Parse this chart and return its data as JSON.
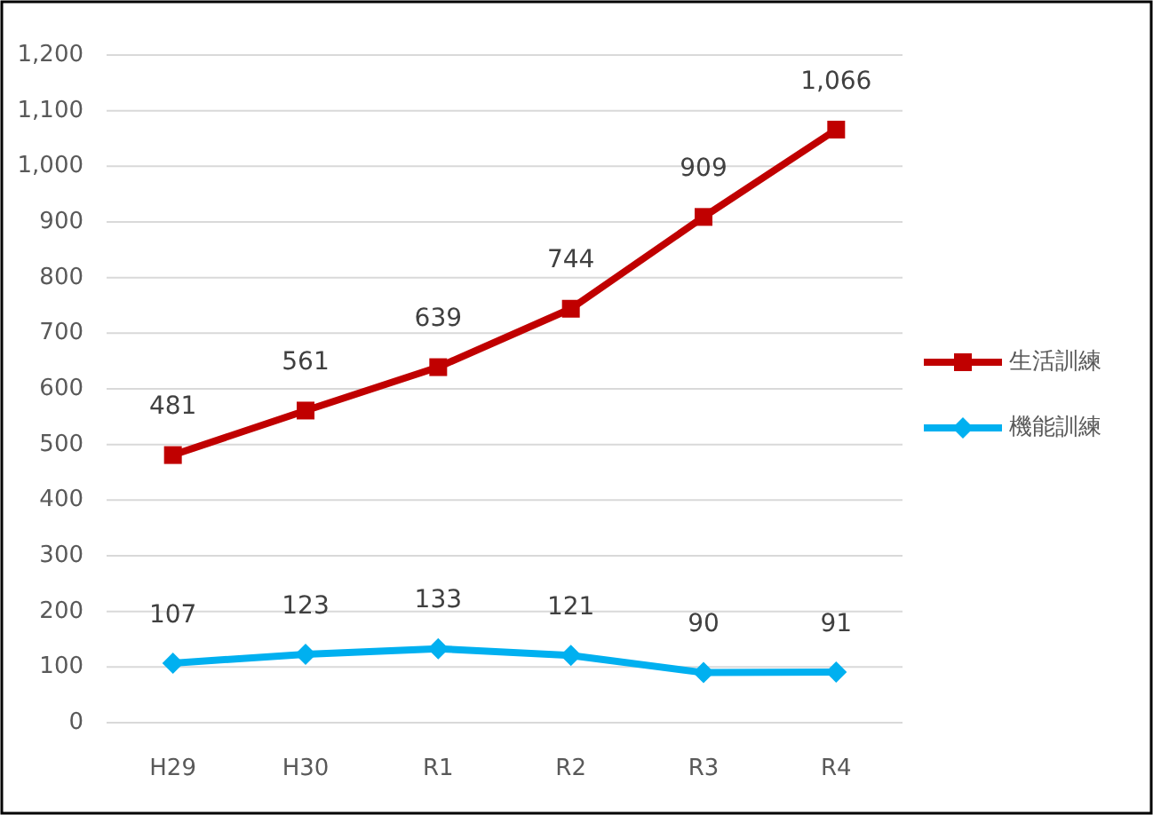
{
  "chart_data": {
    "type": "line",
    "categories": [
      "H29",
      "H30",
      "R1",
      "R2",
      "R3",
      "R4"
    ],
    "series": [
      {
        "name": "生活訓練",
        "color": "#c00000",
        "marker": "square",
        "values": [
          481,
          561,
          639,
          744,
          909,
          1066
        ],
        "value_labels": [
          "481",
          "561",
          "639",
          "744",
          "909",
          "1,066"
        ]
      },
      {
        "name": "機能訓練",
        "color": "#00b0f0",
        "marker": "diamond",
        "values": [
          107,
          123,
          133,
          121,
          90,
          91
        ],
        "value_labels": [
          "107",
          "123",
          "133",
          "121",
          "90",
          "91"
        ]
      }
    ],
    "ylim": [
      0,
      1200
    ],
    "yticks": [
      0,
      100,
      200,
      300,
      400,
      500,
      600,
      700,
      800,
      900,
      {
        "value": 1000,
        "label": "1,000"
      },
      {
        "value": 1100,
        "label": "1,100"
      },
      {
        "value": 1200,
        "label": "1,200"
      }
    ],
    "grid": "y",
    "legend": "right"
  }
}
